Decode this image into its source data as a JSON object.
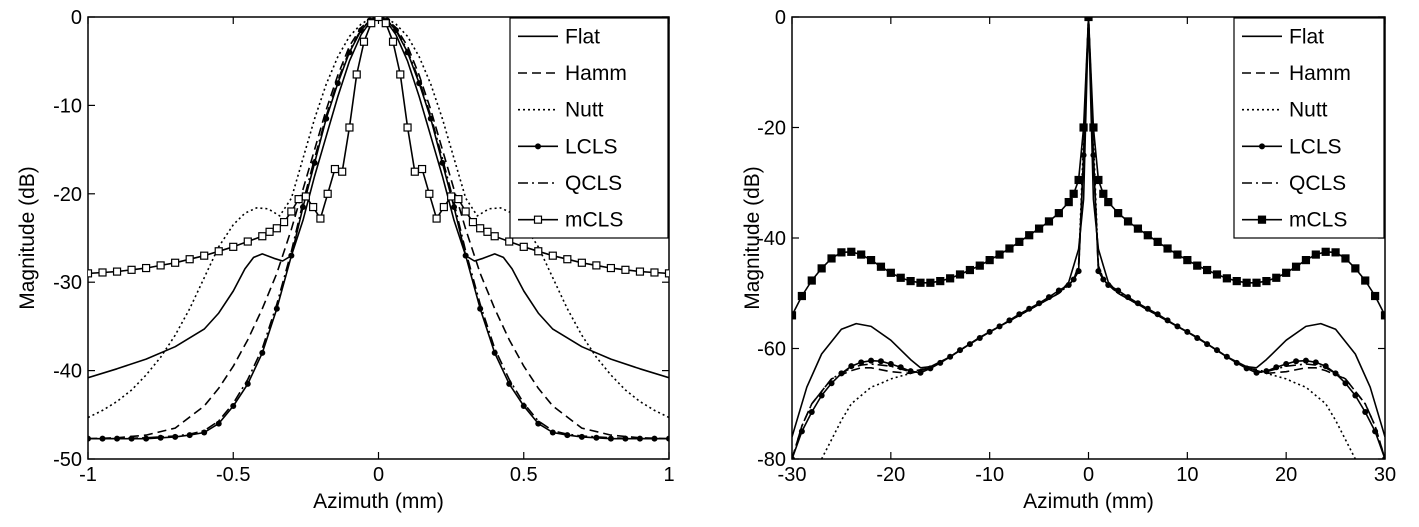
{
  "chart_data": [
    {
      "type": "line",
      "xlabel": "Azimuth (mm)",
      "ylabel": "Magnitude (dB)",
      "xlim": [
        -1,
        1
      ],
      "ylim": [
        -50,
        0
      ],
      "xticks": [
        -1,
        -0.5,
        0,
        0.5,
        1
      ],
      "yticks": [
        -50,
        -40,
        -30,
        -20,
        -10,
        0
      ],
      "xtick_labels": [
        "-1",
        "-0.5",
        "0",
        "0.5",
        "1"
      ],
      "ytick_labels": [
        "-50",
        "-40",
        "-30",
        "-20",
        "-10",
        "0"
      ],
      "grid": false,
      "legend_position": "top-right",
      "series": [
        {
          "name": "Flat",
          "style": "solid",
          "marker": "none",
          "x": [
            0,
            0.03,
            0.06,
            0.1,
            0.14,
            0.18,
            0.22,
            0.26,
            0.3,
            0.33,
            0.36,
            0.4,
            0.43,
            0.46,
            0.5,
            0.55,
            0.6,
            0.7,
            0.8,
            0.9,
            1.0
          ],
          "y": [
            0,
            -0.6,
            -2,
            -5,
            -9,
            -13.5,
            -18,
            -23,
            -27,
            -27.6,
            -27.3,
            -26.8,
            -27.2,
            -28.5,
            -31,
            -33.5,
            -35.3,
            -37.3,
            -38.7,
            -39.8,
            -40.8
          ]
        },
        {
          "name": "Hamm",
          "style": "dashed",
          "marker": "none",
          "x": [
            0,
            0.03,
            0.06,
            0.1,
            0.14,
            0.18,
            0.22,
            0.26,
            0.3,
            0.35,
            0.4,
            0.45,
            0.5,
            0.55,
            0.6,
            0.7,
            0.8,
            0.9,
            1.0
          ],
          "y": [
            0,
            -0.3,
            -1.2,
            -3.3,
            -6.6,
            -10.5,
            -15,
            -19.5,
            -24,
            -29,
            -33,
            -36.5,
            -39.5,
            -42,
            -44,
            -46.5,
            -47.3,
            -47.6,
            -47.7
          ]
        },
        {
          "name": "Nutt",
          "style": "dotted",
          "marker": "none",
          "x": [
            0,
            0.03,
            0.06,
            0.1,
            0.14,
            0.18,
            0.22,
            0.26,
            0.3,
            0.34,
            0.38,
            0.42,
            0.46,
            0.5,
            0.55,
            0.6,
            0.65,
            0.7,
            0.75,
            0.8,
            0.85,
            0.9,
            0.95,
            1.0
          ],
          "y": [
            0,
            -0.2,
            -0.8,
            -2.2,
            -4.5,
            -7.6,
            -11.5,
            -16,
            -20.5,
            -22.5,
            -21.7,
            -21.6,
            -22.2,
            -23.5,
            -26,
            -29.5,
            -33,
            -36,
            -38.5,
            -40.5,
            -42.2,
            -43.5,
            -44.5,
            -45.3
          ]
        },
        {
          "name": "LCLS",
          "style": "solid",
          "marker": "circle",
          "x": [
            0,
            0.03,
            0.06,
            0.1,
            0.14,
            0.18,
            0.22,
            0.26,
            0.3,
            0.35,
            0.4,
            0.45,
            0.5,
            0.55,
            0.6,
            0.65,
            0.7,
            0.75,
            0.8,
            0.85,
            0.9,
            0.95,
            1.0
          ],
          "y": [
            0,
            -0.4,
            -1.5,
            -4,
            -7.5,
            -11.5,
            -16.5,
            -21.5,
            -27,
            -33,
            -38,
            -41.5,
            -44,
            -46,
            -47,
            -47.3,
            -47.5,
            -47.6,
            -47.7,
            -47.7,
            -47.7,
            -47.7,
            -47.7
          ]
        },
        {
          "name": "QCLS",
          "style": "dashdot",
          "marker": "none",
          "x": [
            0,
            0.03,
            0.06,
            0.1,
            0.14,
            0.18,
            0.22,
            0.26,
            0.3,
            0.35,
            0.4,
            0.45,
            0.5,
            0.55,
            0.6,
            0.65,
            0.7,
            0.8,
            0.9,
            1.0
          ],
          "y": [
            0,
            -0.4,
            -1.4,
            -3.8,
            -7.2,
            -11.2,
            -16,
            -21,
            -26.5,
            -32.5,
            -37.5,
            -41,
            -43.7,
            -45.7,
            -46.8,
            -47.2,
            -47.4,
            -47.6,
            -47.7,
            -47.7
          ]
        },
        {
          "name": "mCLS",
          "style": "solid",
          "marker": "square",
          "x": [
            0,
            0.025,
            0.05,
            0.075,
            0.1,
            0.125,
            0.15,
            0.175,
            0.2,
            0.225,
            0.25,
            0.275,
            0.3,
            0.325,
            0.35,
            0.375,
            0.4,
            0.45,
            0.5,
            0.55,
            0.6,
            0.65,
            0.7,
            0.75,
            0.8,
            0.85,
            0.9,
            0.95,
            1.0
          ],
          "y": [
            0,
            -0.7,
            -2.8,
            -6.5,
            -12.5,
            -17.5,
            -17.2,
            -20,
            -22.8,
            -21.5,
            -20.3,
            -20.6,
            -22,
            -23.2,
            -23.9,
            -24.3,
            -24.8,
            -25.4,
            -26,
            -26.5,
            -27,
            -27.4,
            -27.8,
            -28.1,
            -28.4,
            -28.6,
            -28.8,
            -28.9,
            -29
          ]
        }
      ]
    },
    {
      "type": "line",
      "xlabel": "Azimuth (mm)",
      "ylabel": "Magnitude (dB)",
      "xlim": [
        -30,
        30
      ],
      "ylim": [
        -80,
        0
      ],
      "xticks": [
        -30,
        -20,
        -10,
        0,
        10,
        20,
        30
      ],
      "yticks": [
        -80,
        -60,
        -40,
        -20,
        0
      ],
      "xtick_labels": [
        "-30",
        "-20",
        "-10",
        "0",
        "10",
        "20",
        "30"
      ],
      "ytick_labels": [
        "-80",
        "-60",
        "-40",
        "-20",
        "0"
      ],
      "grid": false,
      "legend_position": "top-right",
      "series": [
        {
          "name": "Flat",
          "style": "solid",
          "marker": "none",
          "x": [
            0,
            0.5,
            1,
            1.5,
            2,
            3,
            5,
            8,
            11,
            14,
            16,
            17,
            18,
            20,
            22,
            23.5,
            25,
            27,
            28.5,
            30
          ],
          "y": [
            0,
            -33,
            -42,
            -45,
            -48,
            -50,
            -52,
            -55,
            -58,
            -61.5,
            -63.3,
            -63.5,
            -62,
            -58.5,
            -56,
            -55.5,
            -56.5,
            -61,
            -67,
            -76
          ]
        },
        {
          "name": "Hamm",
          "style": "dashed",
          "marker": "none",
          "x": [
            0,
            0.5,
            1,
            1.5,
            2,
            3,
            5,
            8,
            11,
            14,
            16,
            18,
            20,
            22,
            23,
            24,
            26,
            28,
            29,
            30
          ],
          "y": [
            0,
            -25,
            -45,
            -47.5,
            -48.5,
            -50,
            -52,
            -55,
            -58,
            -61.5,
            -63.5,
            -64.5,
            -64.2,
            -63.5,
            -63.5,
            -64,
            -65.5,
            -70,
            -74,
            -80
          ]
        },
        {
          "name": "Nutt",
          "style": "dotted",
          "marker": "none",
          "x": [
            0,
            0.5,
            1,
            1.5,
            2,
            3,
            5,
            8,
            11,
            14,
            16,
            18,
            19,
            20,
            21,
            22,
            24,
            25,
            26,
            27
          ],
          "y": [
            0,
            -22,
            -45,
            -47.5,
            -48.5,
            -50,
            -52,
            -55,
            -58,
            -61.5,
            -63.5,
            -64.5,
            -65,
            -65.5,
            -66.3,
            -67,
            -70,
            -73,
            -76.5,
            -80
          ]
        },
        {
          "name": "LCLS",
          "style": "solid",
          "marker": "circle",
          "x": [
            0,
            0.5,
            1,
            1.5,
            2,
            3,
            4,
            5,
            6,
            7,
            8,
            9,
            10,
            11,
            12,
            13,
            14,
            15,
            16,
            17,
            18,
            19,
            20,
            21,
            22,
            23,
            24,
            25,
            26,
            27,
            28,
            29,
            30
          ],
          "y": [
            0,
            -25,
            -46,
            -47.5,
            -48.5,
            -49.5,
            -50.7,
            -51.8,
            -52.8,
            -53.8,
            -54.9,
            -56,
            -57,
            -58.1,
            -59.2,
            -60.3,
            -61.5,
            -62.6,
            -63.6,
            -64.4,
            -64.1,
            -63.4,
            -62.8,
            -62.3,
            -62.2,
            -62.5,
            -63.2,
            -64.5,
            -66.3,
            -68.5,
            -71.5,
            -75,
            -80
          ]
        },
        {
          "name": "QCLS",
          "style": "dashdot",
          "marker": "none",
          "x": [
            0,
            0.5,
            1,
            1.5,
            2,
            3,
            5,
            8,
            11,
            14,
            16,
            18,
            20,
            22,
            23,
            24,
            26,
            28,
            29,
            30
          ],
          "y": [
            0,
            -25,
            -46,
            -47.5,
            -48.5,
            -49.8,
            -52,
            -55,
            -58,
            -61.5,
            -63.5,
            -64.2,
            -63.2,
            -62.8,
            -63,
            -63.5,
            -65.5,
            -70,
            -74,
            -80
          ]
        },
        {
          "name": "mCLS",
          "style": "solid",
          "marker": "square",
          "x": [
            0,
            0.5,
            1,
            1.5,
            2,
            3,
            4,
            5,
            6,
            7,
            8,
            9,
            10,
            11,
            12,
            13,
            14,
            15,
            16,
            17,
            18,
            19,
            20,
            21,
            22,
            23,
            24,
            25,
            26,
            27,
            28,
            29,
            30
          ],
          "y": [
            0,
            -20,
            -29.5,
            -32,
            -33.5,
            -35.5,
            -37,
            -38.3,
            -39.5,
            -40.7,
            -41.9,
            -43,
            -44,
            -45,
            -45.8,
            -46.6,
            -47.3,
            -47.8,
            -48.1,
            -48.1,
            -47.8,
            -47.2,
            -46.3,
            -45.2,
            -44,
            -43,
            -42.5,
            -42.6,
            -43.7,
            -45.5,
            -47.7,
            -50.5,
            -54
          ]
        }
      ]
    }
  ]
}
